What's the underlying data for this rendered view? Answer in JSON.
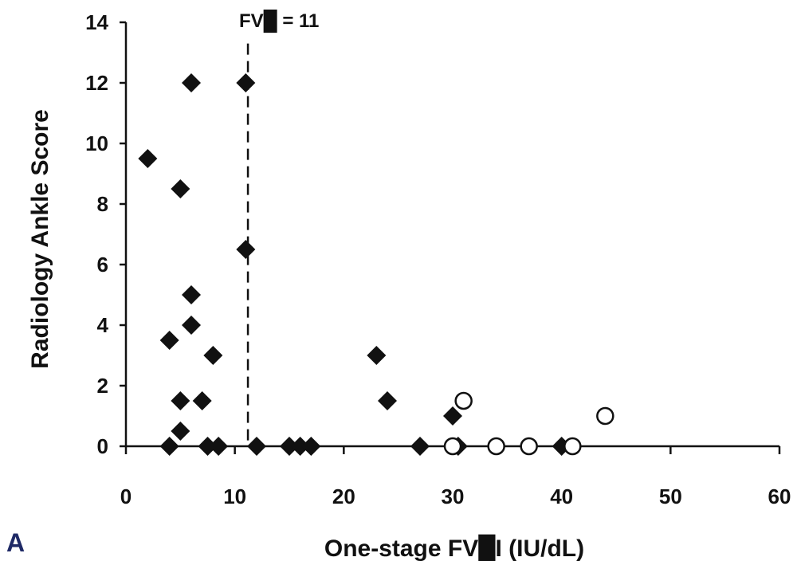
{
  "chart_data": {
    "type": "scatter",
    "title": "",
    "panel_label": "A",
    "xlabel": "One-stage FV█I (IU/dL)",
    "ylabel": "Radiology Ankle Score",
    "xlim": [
      0,
      60
    ],
    "ylim": [
      0,
      14
    ],
    "xticks": [
      0,
      10,
      20,
      30,
      40,
      50,
      60
    ],
    "yticks": [
      0,
      2,
      4,
      6,
      8,
      10,
      12,
      14
    ],
    "grid": false,
    "legend": "none",
    "reference_line": {
      "x": 11.2,
      "label": "FV█ = 11",
      "style": "dashed"
    },
    "series": [
      {
        "marker": "filled-diamond",
        "color": "#111111",
        "points": [
          [
            2,
            9.5
          ],
          [
            5,
            8.5
          ],
          [
            6,
            12
          ],
          [
            11,
            12
          ],
          [
            11,
            6.5
          ],
          [
            6,
            5
          ],
          [
            6,
            4
          ],
          [
            4,
            3.5
          ],
          [
            8,
            3
          ],
          [
            5,
            1.5
          ],
          [
            7,
            1.5
          ],
          [
            5,
            0.5
          ],
          [
            4,
            0
          ],
          [
            7.5,
            0
          ],
          [
            8.5,
            0
          ],
          [
            12,
            0
          ],
          [
            15,
            0
          ],
          [
            16,
            0
          ],
          [
            17,
            0
          ],
          [
            23,
            3
          ],
          [
            24,
            1.5
          ],
          [
            27,
            0
          ],
          [
            30,
            1
          ],
          [
            30.5,
            0
          ],
          [
            40,
            0
          ]
        ]
      },
      {
        "marker": "open-circle",
        "color": "#111111",
        "points": [
          [
            30,
            0
          ],
          [
            31,
            1.5
          ],
          [
            34,
            0
          ],
          [
            37,
            0
          ],
          [
            41,
            0
          ],
          [
            44,
            1
          ]
        ]
      }
    ]
  }
}
